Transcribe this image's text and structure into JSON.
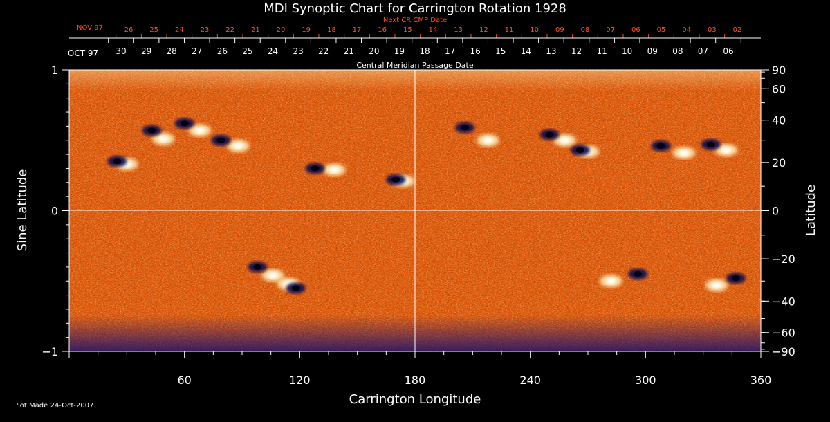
{
  "chart_data": {
    "type": "heatmap",
    "title": "MDI Synoptic Chart for Carrington Rotation 1928",
    "xlabel": "Carrington Longitude",
    "ylabel_left": "Sine Latitude",
    "ylabel_right": "Latitude",
    "xlim": [
      0,
      360
    ],
    "ylim_sine": [
      -1,
      1
    ],
    "x_ticks": [
      "60",
      "120",
      "180",
      "240",
      "300",
      "360"
    ],
    "x_tick_values": [
      60,
      120,
      180,
      240,
      300,
      360
    ],
    "y_left_ticks": [
      {
        "value": 1,
        "label": "1"
      },
      {
        "value": 0,
        "label": "0"
      },
      {
        "value": -1,
        "label": "−1"
      }
    ],
    "y_right_ticks": [
      {
        "deg": 90,
        "label": "90"
      },
      {
        "deg": 60,
        "label": "60"
      },
      {
        "deg": 40,
        "label": "40"
      },
      {
        "deg": 20,
        "label": "20"
      },
      {
        "deg": 0,
        "label": "0"
      },
      {
        "deg": -20,
        "label": "−20"
      },
      {
        "deg": -40,
        "label": "−40"
      },
      {
        "deg": -60,
        "label": "−60"
      },
      {
        "deg": -90,
        "label": "−90"
      }
    ],
    "top_axis_label": "Central Meridian Passage Date",
    "top_axis_month": "OCT 97",
    "top_axis_dates": [
      "30",
      "29",
      "28",
      "27",
      "26",
      "25",
      "24",
      "23",
      "22",
      "21",
      "20",
      "19",
      "18",
      "17",
      "16",
      "15",
      "14",
      "13",
      "12",
      "11",
      "10",
      "09",
      "08",
      "07",
      "06"
    ],
    "next_cr_label": "Next CR CMP Date",
    "next_cr_month": "NOV 97",
    "next_cr_dates": [
      "26",
      "25",
      "24",
      "23",
      "22",
      "21",
      "20",
      "19",
      "18",
      "17",
      "16",
      "15",
      "14",
      "13",
      "12",
      "11",
      "10",
      "09",
      "08",
      "07",
      "06",
      "05",
      "04",
      "03",
      "02"
    ],
    "regions": [
      {
        "lon": 25,
        "sinlat": 0.35,
        "neg": [
          0,
          0
        ],
        "pos": [
          5,
          -0.02
        ]
      },
      {
        "lon": 45,
        "sinlat": 0.55,
        "neg": [
          -2,
          0.02
        ],
        "pos": [
          4,
          -0.04
        ]
      },
      {
        "lon": 60,
        "sinlat": 0.62,
        "neg": [
          0,
          0
        ],
        "pos": [
          8,
          -0.05
        ]
      },
      {
        "lon": 85,
        "sinlat": 0.48,
        "neg": [
          -6,
          0.02
        ],
        "pos": [
          3,
          -0.02
        ]
      },
      {
        "lon": 132,
        "sinlat": 0.3,
        "neg": [
          -4,
          0
        ],
        "pos": [
          6,
          -0.01
        ]
      },
      {
        "lon": 172,
        "sinlat": 0.22,
        "neg": [
          -2,
          0
        ],
        "pos": [
          2,
          -0.01
        ]
      },
      {
        "lon": 210,
        "sinlat": 0.55,
        "neg": [
          -4,
          0.04
        ],
        "pos": [
          8,
          -0.05
        ]
      },
      {
        "lon": 252,
        "sinlat": 0.52,
        "neg": [
          -2,
          0.02
        ],
        "pos": [
          6,
          -0.02
        ]
      },
      {
        "lon": 268,
        "sinlat": 0.43,
        "neg": [
          -2,
          0
        ],
        "pos": [
          2,
          -0.01
        ]
      },
      {
        "lon": 310,
        "sinlat": 0.45,
        "neg": [
          -2,
          0.01
        ],
        "pos": [
          10,
          -0.04
        ]
      },
      {
        "lon": 340,
        "sinlat": 0.45,
        "neg": [
          -6,
          0.02
        ],
        "pos": [
          2,
          -0.02
        ]
      },
      {
        "lon": 100,
        "sinlat": -0.42,
        "neg": [
          -2,
          0.02
        ],
        "pos": [
          6,
          -0.04
        ]
      },
      {
        "lon": 118,
        "sinlat": -0.55,
        "neg": [
          0,
          0
        ],
        "pos": [
          -4,
          0.03
        ]
      },
      {
        "lon": 292,
        "sinlat": -0.48,
        "neg": [
          4,
          0.03
        ],
        "pos": [
          -10,
          -0.02
        ]
      },
      {
        "lon": 343,
        "sinlat": -0.5,
        "neg": [
          4,
          0.02
        ],
        "pos": [
          -6,
          -0.03
        ]
      }
    ]
  },
  "footer": {
    "plot_made": "Plot Made 24-Oct-2007"
  },
  "colors": {
    "background": "#000000",
    "field": "#e85a0a",
    "field_dark": "#b83000",
    "positive": "#ffffd0",
    "negative": "#10105a",
    "axis": "#ffffff",
    "next_cr": "#ff5020"
  }
}
